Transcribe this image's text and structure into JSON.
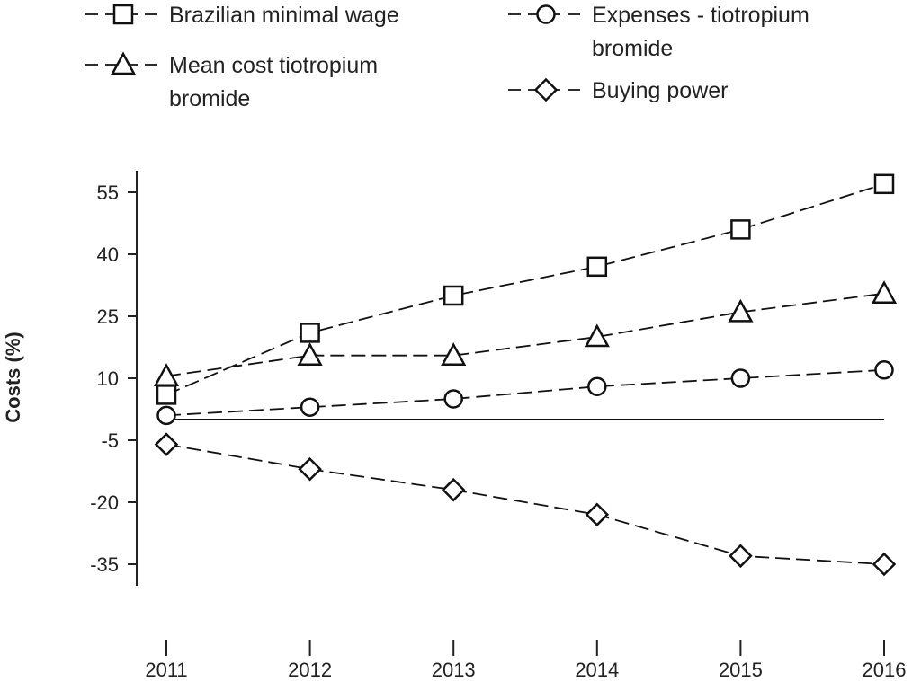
{
  "chart_data": {
    "type": "line",
    "title": "",
    "xlabel": "",
    "ylabel": "Costs (%)",
    "x": [
      2011,
      2012,
      2013,
      2014,
      2015,
      2016
    ],
    "x_tick_labels": [
      "2011",
      "2012",
      "2013",
      "2014",
      "2015",
      "2016"
    ],
    "y_ticks": [
      55,
      40,
      25,
      10,
      -5,
      -20,
      -35
    ],
    "y_tick_labels": [
      "55",
      "40",
      "25",
      "10",
      "-5",
      "-20",
      "-35"
    ],
    "ylim": [
      -38,
      62
    ],
    "reference_line": 0,
    "grid": false,
    "legend_position": "top",
    "series": [
      {
        "name": "Brazilian minimal wage",
        "marker": "square",
        "values": [
          6,
          21,
          30,
          37,
          46,
          57
        ]
      },
      {
        "name": "Mean cost tiotropium bromide",
        "marker": "triangle",
        "values": [
          10.5,
          15.5,
          15.5,
          20,
          26,
          30.5
        ]
      },
      {
        "name": "Expenses - tiotropium bromide",
        "marker": "circle",
        "values": [
          1,
          3,
          5,
          8,
          10,
          12
        ]
      },
      {
        "name": "Buying power",
        "marker": "diamond",
        "values": [
          -6,
          -12,
          -17,
          -23,
          -33,
          -35
        ]
      }
    ],
    "legend": [
      {
        "line1": "Brazilian minimal wage",
        "line2": "",
        "marker": "square"
      },
      {
        "line1": "Expenses - tiotropium",
        "line2": "bromide",
        "marker": "circle"
      },
      {
        "line1": "Mean cost tiotropium",
        "line2": "bromide",
        "marker": "triangle"
      },
      {
        "line1": "Buying power",
        "line2": "",
        "marker": "diamond"
      }
    ]
  }
}
